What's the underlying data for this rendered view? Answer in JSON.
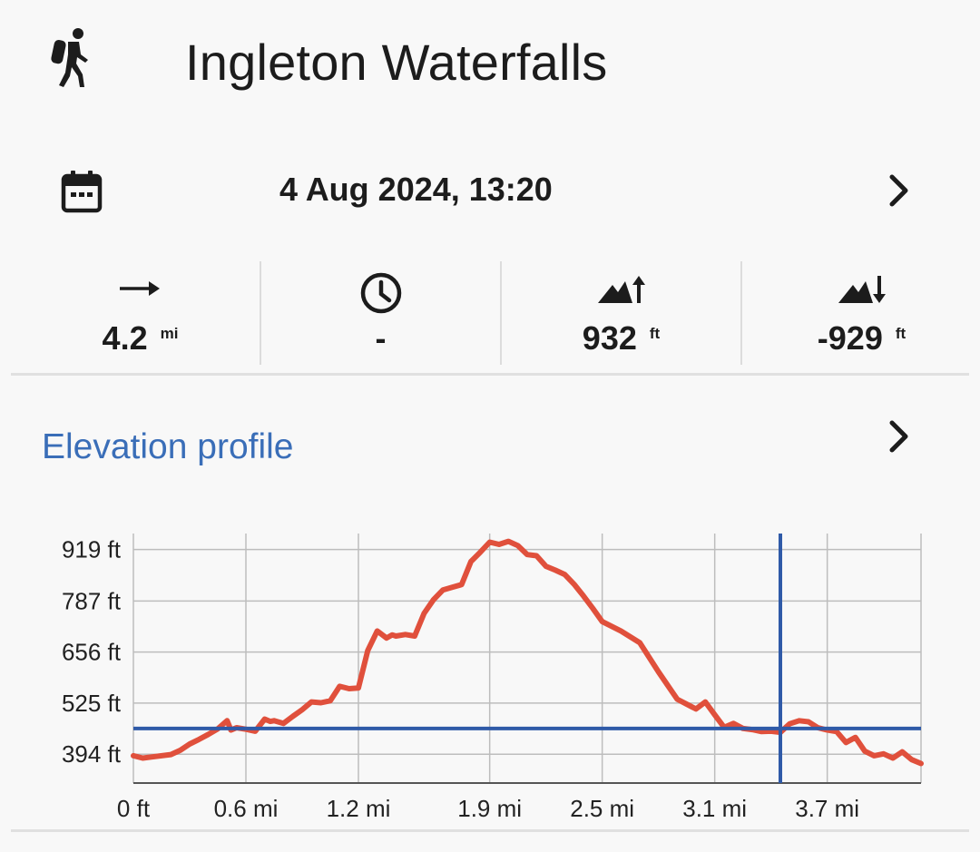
{
  "header": {
    "title": "Ingleton Waterfalls",
    "icon": "hiker-icon"
  },
  "date_row": {
    "date": "4 Aug 2024, 13:20",
    "icon": "calendar-icon"
  },
  "stats": {
    "distance": {
      "icon": "arrow-right-icon",
      "value": "4.2",
      "unit": "mi"
    },
    "duration": {
      "icon": "clock-icon",
      "value": "-"
    },
    "ascent": {
      "icon": "mountain-ascent-icon",
      "value": "932",
      "unit": "ft"
    },
    "descent": {
      "icon": "mountain-descent-icon",
      "value": "-929",
      "unit": "ft"
    }
  },
  "elevation": {
    "title": "Elevation profile"
  },
  "colors": {
    "accent": "#3a6eb8",
    "line": "#e0503c",
    "cursor": "#2f5aa8"
  },
  "chart_data": {
    "type": "line",
    "y_ticks": [
      "394 ft",
      "525 ft",
      "656 ft",
      "787 ft",
      "919 ft"
    ],
    "y_tick_values": [
      394,
      525,
      656,
      787,
      919
    ],
    "x_ticks": [
      "0 ft",
      "0.6 mi",
      "1.2 mi",
      "1.9 mi",
      "2.5 mi",
      "3.1 mi",
      "3.7 mi"
    ],
    "x_tick_values": [
      0,
      0.6,
      1.2,
      1.9,
      2.5,
      3.1,
      3.7
    ],
    "xlim": [
      0,
      4.2
    ],
    "ylim": [
      320,
      960
    ],
    "grid": true,
    "cursor": {
      "x": 3.45,
      "y": 460
    },
    "series": [
      {
        "x": [
          0,
          0.05,
          0.1,
          0.2,
          0.25,
          0.3,
          0.35,
          0.4,
          0.45,
          0.5,
          0.52,
          0.55,
          0.6,
          0.65,
          0.7,
          0.73,
          0.75,
          0.8,
          0.85,
          0.9,
          0.95,
          1.0,
          1.05,
          1.1,
          1.15,
          1.2,
          1.25,
          1.3,
          1.35,
          1.38,
          1.4,
          1.45,
          1.5,
          1.55,
          1.6,
          1.65,
          1.7,
          1.75,
          1.8,
          1.85,
          1.9,
          1.95,
          2.0,
          2.05,
          2.1,
          2.15,
          2.2,
          2.25,
          2.3,
          2.35,
          2.4,
          2.45,
          2.5,
          2.6,
          2.7,
          2.8,
          2.9,
          3.0,
          3.05,
          3.1,
          3.15,
          3.2,
          3.25,
          3.3,
          3.35,
          3.4,
          3.45,
          3.5,
          3.55,
          3.6,
          3.65,
          3.7,
          3.75,
          3.8,
          3.85,
          3.9,
          3.95,
          4.0,
          4.05,
          4.1,
          4.15,
          4.2
        ],
        "values": [
          390,
          384,
          387,
          393,
          404,
          420,
          432,
          445,
          459,
          480,
          456,
          462,
          458,
          453,
          484,
          478,
          480,
          473,
          491,
          508,
          528,
          526,
          531,
          568,
          562,
          564,
          660,
          710,
          692,
          700,
          697,
          701,
          697,
          755,
          790,
          815,
          822,
          829,
          888,
          912,
          938,
          932,
          940,
          929,
          906,
          903,
          876,
          866,
          855,
          830,
          800,
          768,
          734,
          710,
          680,
          605,
          535,
          510,
          528,
          495,
          463,
          473,
          460,
          457,
          452,
          453,
          450,
          472,
          480,
          477,
          462,
          456,
          452,
          424,
          437,
          402,
          390,
          395,
          384,
          400,
          380,
          370
        ]
      }
    ]
  }
}
